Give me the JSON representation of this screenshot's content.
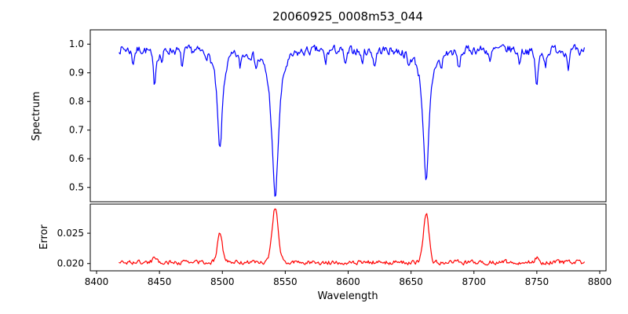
{
  "chart_data": {
    "type": "line",
    "title": "20060925_0008m53_044",
    "xlabel": "Wavelength",
    "xlim": [
      8395,
      8805
    ],
    "xticks": [
      8400,
      8450,
      8500,
      8550,
      8600,
      8650,
      8700,
      8750,
      8800
    ],
    "xtick_labels": [
      "8400",
      "8450",
      "8500",
      "8550",
      "8600",
      "8650",
      "8700",
      "8750",
      "8800"
    ],
    "x_data_range": [
      8418,
      8788
    ],
    "sampling": {
      "start": 8418,
      "end": 8788,
      "step": 0.75
    },
    "seed": 7,
    "grid": false,
    "legend": "none",
    "panels": [
      {
        "name": "spectrum",
        "ylabel": "Spectrum",
        "ylim": [
          0.45,
          1.05
        ],
        "yticks": [
          0.5,
          0.6,
          0.7,
          0.8,
          0.9,
          1.0
        ],
        "ytick_labels": [
          "0.5",
          "0.6",
          "0.7",
          "0.8",
          "0.9",
          "1.0"
        ],
        "color": "#0000ff",
        "continuum": 0.985,
        "noise_amplitude": 0.014,
        "noise_smoothing": 0.4,
        "absorption_lines": [
          {
            "center": 8429,
            "depth": 0.05,
            "width": 1.0
          },
          {
            "center": 8446,
            "depth": 0.12,
            "width": 1.3
          },
          {
            "center": 8452,
            "depth": 0.04,
            "width": 1.0
          },
          {
            "center": 8468,
            "depth": 0.06,
            "width": 1.1
          },
          {
            "center": 8498,
            "depth": 0.355,
            "width": 2.5
          },
          {
            "center": 8514,
            "depth": 0.05,
            "width": 1.0
          },
          {
            "center": 8527,
            "depth": 0.04,
            "width": 1.0
          },
          {
            "center": 8542,
            "depth": 0.52,
            "width": 3.2
          },
          {
            "center": 8582,
            "depth": 0.05,
            "width": 1.0
          },
          {
            "center": 8598,
            "depth": 0.06,
            "width": 1.2
          },
          {
            "center": 8611,
            "depth": 0.05,
            "width": 1.0
          },
          {
            "center": 8621,
            "depth": 0.06,
            "width": 1.1
          },
          {
            "center": 8648,
            "depth": 0.05,
            "width": 1.0
          },
          {
            "center": 8662,
            "depth": 0.475,
            "width": 2.8
          },
          {
            "center": 8674,
            "depth": 0.05,
            "width": 1.0
          },
          {
            "center": 8688,
            "depth": 0.07,
            "width": 1.2
          },
          {
            "center": 8713,
            "depth": 0.05,
            "width": 1.0
          },
          {
            "center": 8736,
            "depth": 0.05,
            "width": 1.0
          },
          {
            "center": 8750,
            "depth": 0.13,
            "width": 1.4
          },
          {
            "center": 8757,
            "depth": 0.05,
            "width": 1.0
          },
          {
            "center": 8775,
            "depth": 0.06,
            "width": 1.1
          },
          {
            "center": 8784,
            "depth": 0.04,
            "width": 1.0
          }
        ],
        "key_minima": [
          {
            "wavelength": 8498,
            "value": 0.635
          },
          {
            "wavelength": 8542,
            "value": 0.47
          },
          {
            "wavelength": 8662,
            "value": 0.515
          },
          {
            "wavelength": 8446,
            "value": 0.87
          },
          {
            "wavelength": 8750,
            "value": 0.855
          }
        ]
      },
      {
        "name": "error",
        "ylabel": "Error",
        "ylim": [
          0.0188,
          0.0298
        ],
        "yticks": [
          0.02,
          0.025
        ],
        "ytick_labels": [
          "0.020",
          "0.025"
        ],
        "color": "#ff0000",
        "baseline": 0.0202,
        "noise_amplitude": 0.00032,
        "noise_smoothing": 0.4,
        "peaks": [
          {
            "center": 8446,
            "height": 0.0009,
            "width": 1.5
          },
          {
            "center": 8498,
            "height": 0.005,
            "width": 2.0
          },
          {
            "center": 8542,
            "height": 0.0091,
            "width": 2.4
          },
          {
            "center": 8662,
            "height": 0.0081,
            "width": 2.2
          },
          {
            "center": 8750,
            "height": 0.0009,
            "width": 1.5
          }
        ],
        "key_maxima": [
          {
            "wavelength": 8498,
            "value": 0.0252
          },
          {
            "wavelength": 8542,
            "value": 0.0293
          },
          {
            "wavelength": 8662,
            "value": 0.0283
          }
        ]
      }
    ]
  },
  "colors": {
    "background": "#ffffff",
    "axis": "#000000",
    "spectrum_line": "#0000ff",
    "error_line": "#ff0000"
  }
}
